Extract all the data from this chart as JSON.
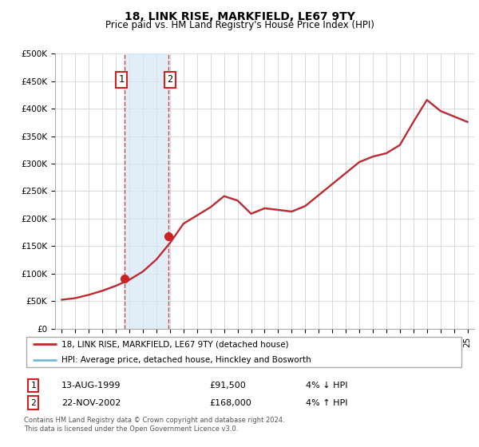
{
  "title": "18, LINK RISE, MARKFIELD, LE67 9TY",
  "subtitle": "Price paid vs. HM Land Registry's House Price Index (HPI)",
  "ylim": [
    0,
    500000
  ],
  "yticks": [
    0,
    50000,
    100000,
    150000,
    200000,
    250000,
    300000,
    350000,
    400000,
    450000,
    500000
  ],
  "ytick_labels": [
    "£0",
    "£50K",
    "£100K",
    "£150K",
    "£200K",
    "£250K",
    "£300K",
    "£350K",
    "£400K",
    "£450K",
    "£500K"
  ],
  "xlim_start": 1994.5,
  "xlim_end": 2025.5,
  "transaction1_date": 1999.617,
  "transaction1_price": 91500,
  "transaction2_date": 2002.896,
  "transaction2_price": 168000,
  "hpi_color": "#7ab8d9",
  "price_color": "#cc2222",
  "shade_color": "#d6e8f5",
  "shade_alpha": 0.7,
  "dashed_color": "#cc4444",
  "legend_entry1": "18, LINK RISE, MARKFIELD, LE67 9TY (detached house)",
  "legend_entry2": "HPI: Average price, detached house, Hinckley and Bosworth",
  "table_row1": [
    "1",
    "13-AUG-1999",
    "£91,500",
    "4% ↓ HPI"
  ],
  "table_row2": [
    "2",
    "22-NOV-2002",
    "£168,000",
    "4% ↑ HPI"
  ],
  "footer": "Contains HM Land Registry data © Crown copyright and database right 2024.\nThis data is licensed under the Open Government Licence v3.0.",
  "title_fontsize": 10,
  "subtitle_fontsize": 8.5,
  "tick_fontsize": 7.5,
  "years": [
    1995,
    1996,
    1997,
    1998,
    1999,
    2000,
    2001,
    2002,
    2003,
    2004,
    2005,
    2006,
    2007,
    2008,
    2009,
    2010,
    2011,
    2012,
    2013,
    2014,
    2015,
    2016,
    2017,
    2018,
    2019,
    2020,
    2021,
    2022,
    2023,
    2024,
    2025
  ],
  "hpi_values": [
    52000,
    55000,
    61000,
    68000,
    77000,
    88000,
    103000,
    125000,
    155000,
    190000,
    205000,
    220000,
    240000,
    232000,
    208000,
    218000,
    215000,
    212000,
    222000,
    242000,
    262000,
    282000,
    302000,
    312000,
    318000,
    333000,
    375000,
    415000,
    395000,
    385000,
    375000
  ],
  "price_values": [
    52500,
    55500,
    61500,
    69000,
    78000,
    89000,
    104000,
    126000,
    156000,
    191000,
    206000,
    221000,
    241000,
    233000,
    209000,
    219000,
    216000,
    213000,
    223000,
    243000,
    263000,
    283000,
    303000,
    313000,
    319000,
    334000,
    376000,
    416000,
    396000,
    386000,
    376000
  ]
}
